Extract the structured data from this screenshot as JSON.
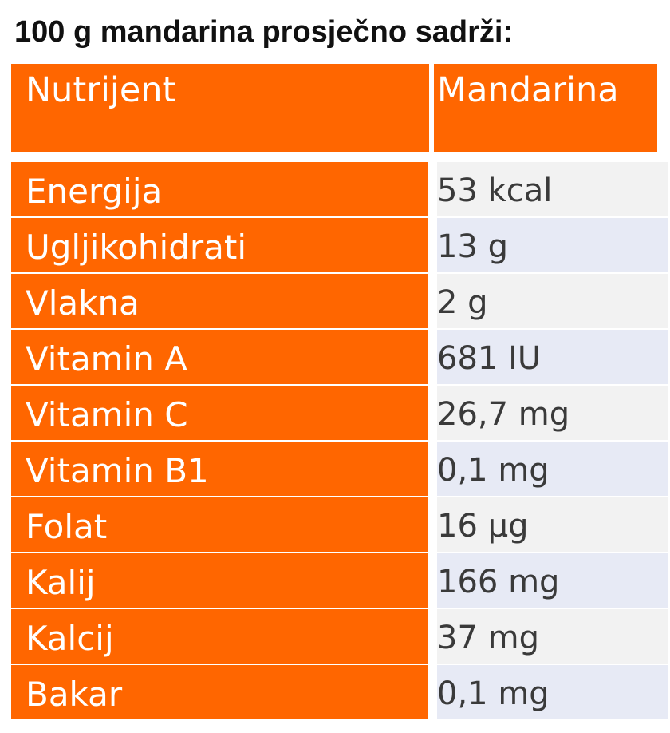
{
  "title": "100 g mandarina prosječno sadrži:",
  "table": {
    "headers": [
      "Nutrijent",
      "Mandarina"
    ],
    "rows": [
      {
        "nutrient": "Energija",
        "value": "53 kcal"
      },
      {
        "nutrient": "Ugljikohidrati",
        "value": "13 g"
      },
      {
        "nutrient": "Vlakna",
        "value": "2 g"
      },
      {
        "nutrient": "Vitamin A",
        "value": "681 IU"
      },
      {
        "nutrient": "Vitamin C",
        "value": "26,7 mg"
      },
      {
        "nutrient": "Vitamin B1",
        "value": "0,1 mg"
      },
      {
        "nutrient": "Folat",
        "value": "16 µg"
      },
      {
        "nutrient": "Kalij",
        "value": "166 mg"
      },
      {
        "nutrient": "Kalcij",
        "value": "37 mg"
      },
      {
        "nutrient": "Bakar",
        "value": "0,1 mg"
      }
    ]
  },
  "colors": {
    "header_bg": "#ff6600",
    "name_bg": "#ff6600",
    "value_bg_odd": "#f2f2f2",
    "value_bg_even": "#e7eaf5",
    "value_text": "#3a3a3a"
  }
}
